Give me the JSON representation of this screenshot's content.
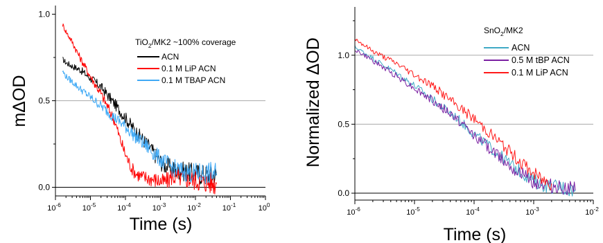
{
  "chart_data": [
    {
      "type": "line",
      "panel": "left",
      "xscale": "log",
      "x_range_s": [
        1e-06,
        1
      ],
      "ylim": [
        -0.05,
        1.05
      ],
      "xlabel": "Time (s)",
      "ylabel": "mΔOD",
      "legend_title": {
        "pre": "TiO",
        "sub": "2",
        "post": "/MK2 ~100% coverage"
      },
      "legend_position": "top-right",
      "x_ticks": [
        {
          "x": 1e-06,
          "base": "10",
          "exp": "-6"
        },
        {
          "x": 1e-05,
          "base": "10",
          "exp": "-5"
        },
        {
          "x": 0.0001,
          "base": "10",
          "exp": "-4"
        },
        {
          "x": 0.001,
          "base": "10",
          "exp": "-3"
        },
        {
          "x": 0.01,
          "base": "10",
          "exp": "-2"
        },
        {
          "x": 0.1,
          "base": "10",
          "exp": "-1"
        },
        {
          "x": 1,
          "base": "10",
          "exp": "0"
        }
      ],
      "y_ticks": [
        {
          "y": 0.0,
          "label": "0.0"
        },
        {
          "y": 0.5,
          "label": "0.5"
        },
        {
          "y": 1.0,
          "label": "1.0"
        }
      ],
      "hlines": [
        0.5
      ],
      "series": [
        {
          "name": "ACN",
          "color": "#000000",
          "x": [
            1.6e-06,
            2e-06,
            3e-06,
            5e-06,
            1e-05,
            2e-05,
            5e-05,
            0.0001,
            0.0002,
            0.0005,
            0.0008,
            0.0012,
            0.0017,
            0.002,
            0.003,
            0.005,
            0.01,
            0.02,
            0.04
          ],
          "y": [
            0.74,
            0.72,
            0.7,
            0.68,
            0.63,
            0.58,
            0.48,
            0.4,
            0.32,
            0.23,
            0.17,
            0.13,
            0.12,
            0.11,
            0.1,
            0.09,
            0.08,
            0.07,
            0.07
          ]
        },
        {
          "name": "0.1 M LiP ACN",
          "color": "#ff0000",
          "x": [
            1.6e-06,
            2e-06,
            3e-06,
            5e-06,
            1e-05,
            2e-05,
            3e-05,
            5e-05,
            7e-05,
            0.0001,
            0.00015,
            0.0002,
            0.0003,
            0.0005,
            0.0008,
            0.0012,
            0.0017,
            0.002,
            0.003,
            0.005,
            0.01,
            0.02,
            0.04
          ],
          "y": [
            0.94,
            0.9,
            0.84,
            0.75,
            0.64,
            0.54,
            0.47,
            0.38,
            0.28,
            0.19,
            0.11,
            0.08,
            0.06,
            0.05,
            0.04,
            0.03,
            0.04,
            0.06,
            0.06,
            0.05,
            0.04,
            0.03,
            0.02
          ]
        },
        {
          "name": "0.1 M TBAP ACN",
          "color": "#3fa9f5",
          "x": [
            1.6e-06,
            2e-06,
            3e-06,
            5e-06,
            1e-05,
            2e-05,
            5e-05,
            0.0001,
            0.0002,
            0.0005,
            0.0008,
            0.0012,
            0.0017,
            0.002,
            0.003,
            0.005,
            0.01,
            0.02,
            0.04
          ],
          "y": [
            0.67,
            0.64,
            0.61,
            0.57,
            0.52,
            0.47,
            0.4,
            0.35,
            0.29,
            0.22,
            0.18,
            0.15,
            0.13,
            0.12,
            0.1,
            0.09,
            0.08,
            0.08,
            0.08
          ]
        }
      ]
    },
    {
      "type": "line",
      "panel": "right",
      "xscale": "log",
      "x_range_s": [
        1e-06,
        0.01
      ],
      "ylim": [
        -0.05,
        1.35
      ],
      "xlabel": "Time (s)",
      "ylabel": "Normalized ΔOD",
      "legend_title": {
        "pre": "SnO",
        "sub": "2",
        "post": "/MK2"
      },
      "legend_position": "top-right",
      "x_ticks": [
        {
          "x": 1e-06,
          "base": "10",
          "exp": "-6"
        },
        {
          "x": 1e-05,
          "base": "10",
          "exp": "-5"
        },
        {
          "x": 0.0001,
          "base": "10",
          "exp": "-4"
        },
        {
          "x": 0.001,
          "base": "10",
          "exp": "-3"
        },
        {
          "x": 0.01,
          "base": "10",
          "exp": "-2"
        }
      ],
      "y_ticks": [
        {
          "y": 0.0,
          "label": "0.0"
        },
        {
          "y": 0.5,
          "label": "0.5"
        },
        {
          "y": 1.0,
          "label": "1.0"
        }
      ],
      "hlines": [
        0.5,
        1.0
      ],
      "series": [
        {
          "name": "ACN",
          "color": "#3fa9c5",
          "x": [
            1e-06,
            2e-06,
            3e-06,
            5e-06,
            1e-05,
            2e-05,
            5e-05,
            0.0001,
            0.0002,
            0.0005,
            0.001,
            0.0015,
            0.002,
            0.003,
            0.005
          ],
          "y": [
            1.06,
            0.98,
            0.93,
            0.87,
            0.78,
            0.68,
            0.55,
            0.43,
            0.32,
            0.18,
            0.09,
            0.06,
            0.05,
            0.04,
            0.02
          ]
        },
        {
          "name": "0.5 M tBP ACN",
          "color": "#7a1fa2",
          "x": [
            1e-06,
            2e-06,
            3e-06,
            5e-06,
            1e-05,
            2e-05,
            5e-05,
            0.0001,
            0.0002,
            0.0005,
            0.001,
            0.0015,
            0.002,
            0.003,
            0.005
          ],
          "y": [
            1.04,
            0.96,
            0.91,
            0.85,
            0.76,
            0.67,
            0.54,
            0.42,
            0.31,
            0.17,
            0.08,
            0.06,
            0.05,
            0.04,
            0.02
          ]
        },
        {
          "name": "0.1 M LiP ACN",
          "color": "#ff1a1a",
          "x": [
            1e-06,
            2e-06,
            3e-06,
            5e-06,
            1e-05,
            2e-05,
            5e-05,
            0.0001,
            0.0002,
            0.0005,
            0.001,
            0.0015,
            0.002
          ],
          "y": [
            1.12,
            1.03,
            0.99,
            0.94,
            0.86,
            0.78,
            0.64,
            0.54,
            0.42,
            0.26,
            0.14,
            0.09,
            0.07
          ]
        }
      ]
    }
  ]
}
